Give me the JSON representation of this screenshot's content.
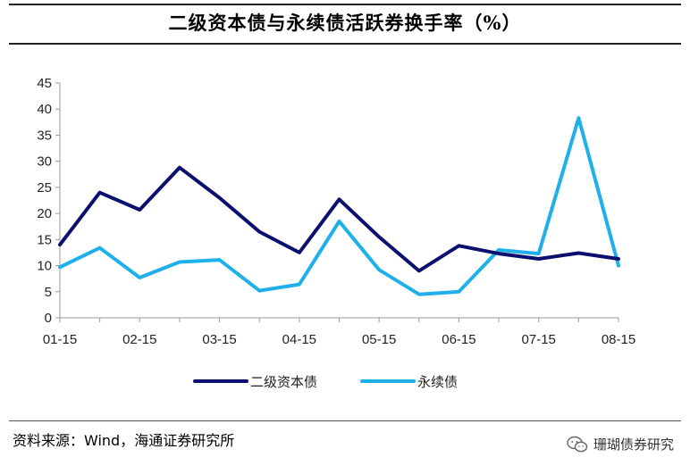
{
  "header": {
    "title": "二级资本债与永续债活跃券换手率（%）"
  },
  "footer": {
    "source": "资料来源：Wind，海通证券研究所",
    "watermark": "珊瑚债券研究"
  },
  "colors": {
    "series1": "#0b0f6e",
    "series2": "#1fb0ea",
    "axis": "#999999"
  },
  "chart_data": {
    "type": "line",
    "title": "二级资本债与永续债活跃券换手率（%）",
    "xlabel": "",
    "ylabel": "",
    "ylim": [
      0,
      45
    ],
    "yticks": [
      0,
      5,
      10,
      15,
      20,
      25,
      30,
      35,
      40,
      45
    ],
    "x_tick_labels": [
      "01-15",
      "02-15",
      "03-15",
      "04-15",
      "05-15",
      "06-15",
      "07-15",
      "08-15"
    ],
    "grid": false,
    "legend_position": "bottom",
    "series": [
      {
        "name": "二级资本债",
        "values": [
          14,
          24,
          20.7,
          28.8,
          23,
          16.5,
          12.5,
          22.7,
          15.5,
          9,
          13.8,
          12.3,
          11.3,
          12.4,
          11.3
        ]
      },
      {
        "name": "永续债",
        "values": [
          9.7,
          13.4,
          7.7,
          10.7,
          11.1,
          5.2,
          6.4,
          18.5,
          9.2,
          4.5,
          5,
          13,
          12.3,
          38.3,
          10
        ]
      }
    ]
  }
}
